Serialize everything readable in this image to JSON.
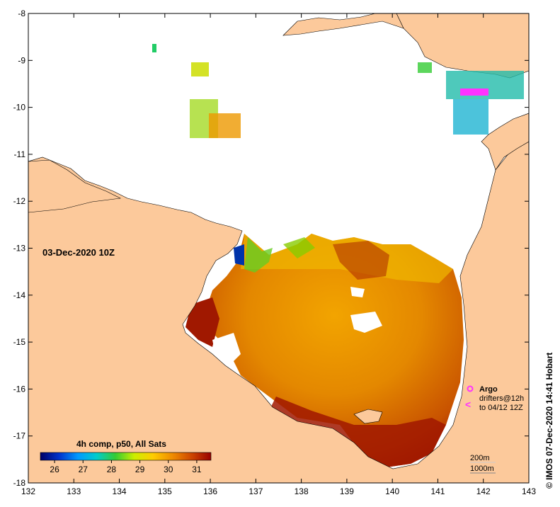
{
  "map": {
    "timestamp": "03-Dec-2020 10Z",
    "x_ticks": [
      "132",
      "133",
      "134",
      "135",
      "136",
      "137",
      "138",
      "139",
      "140",
      "141",
      "142",
      "143"
    ],
    "y_ticks": [
      "-8",
      "-9",
      "-10",
      "-11",
      "-12",
      "-13",
      "-14",
      "-15",
      "-16",
      "-17",
      "-18"
    ],
    "lon_range": [
      132,
      143
    ],
    "lat_range": [
      -18,
      -8
    ],
    "colors": {
      "land": "#fcc99b",
      "no_data": "#ffffff",
      "argo_marker": "#ff33ff",
      "drifter_marker": "#ff33ff"
    }
  },
  "colorbar": {
    "title": "4h comp, p50, All Sats",
    "ticks": [
      "26",
      "27",
      "28",
      "29",
      "30",
      "31"
    ],
    "range": [
      25.5,
      31.5
    ],
    "stops": [
      "#000066",
      "#0033cc",
      "#0099ff",
      "#00cccc",
      "#33cc33",
      "#ccee00",
      "#ffcc00",
      "#ee8800",
      "#cc4400",
      "#990000"
    ]
  },
  "legend": {
    "argo_label": "Argo",
    "drifters_label": "drifters@12h",
    "drifters_time": "to 04/12 12Z",
    "contour_200": "200m",
    "contour_1000": "1000m"
  },
  "credit": "© IMOS 07-Dec-2020 14:41 Hobart"
}
